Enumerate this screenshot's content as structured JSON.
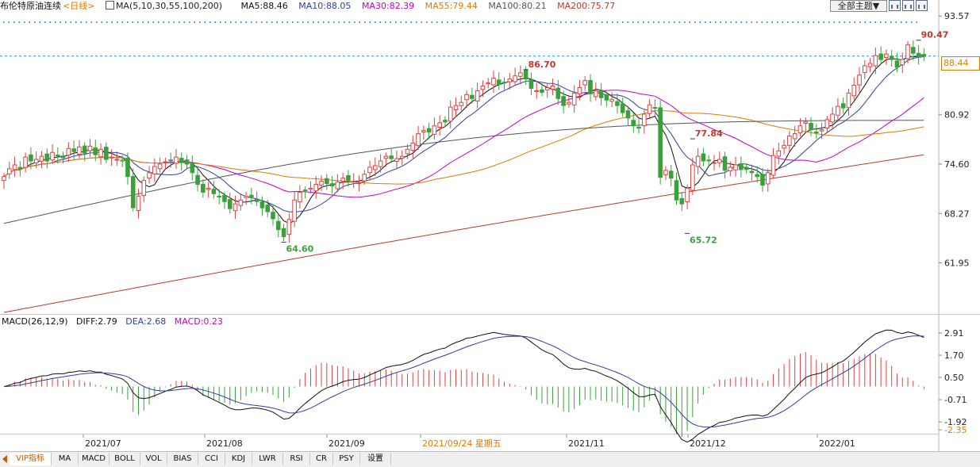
{
  "header": {
    "title": "布伦特原油连续",
    "period": "<日线>",
    "ma_label": "MA(5,10,30,55,100,200)",
    "ma_items": [
      {
        "label": "MA5:88.46",
        "color": "#111111"
      },
      {
        "label": "MA10:88.05",
        "color": "#2f3e9e"
      },
      {
        "label": "MA30:82.39",
        "color": "#c800c8"
      },
      {
        "label": "MA55:79.44",
        "color": "#e07a00"
      },
      {
        "label": "MA100:80.21",
        "color": "#555555"
      },
      {
        "label": "MA200:75.77",
        "color": "#c0392b"
      }
    ],
    "theme_button": "全部主题▼",
    "current_price": "88.44"
  },
  "price_axis": {
    "ticks": [
      "93.57",
      "80.92",
      "74.60",
      "68.27",
      "61.95"
    ]
  },
  "macd": {
    "label": "MACD(26,12,9)",
    "diff_label": "DIFF:2.79",
    "dea_label": "DEA:2.68",
    "macd_label": "MACD:0.23",
    "ticks": [
      "2.91",
      "1.70",
      "0.50",
      "-0.71",
      "-1.92",
      "-2.35"
    ]
  },
  "time_axis": {
    "labels": [
      "2021/07",
      "2021/08",
      "2021/09",
      "2021/09/24 星期五",
      "2021/11",
      "2021/12",
      "2022/01"
    ]
  },
  "annotations": [
    "77.84",
    "64.60",
    "86.70",
    "65.72",
    "90.47"
  ],
  "tabs": [
    "VIP指标",
    "MA",
    "MACD",
    "BOLL",
    "VOL",
    "BIAS",
    "CCI",
    "KDJ",
    "LWR",
    "RSI",
    "CR",
    "PSY",
    "设置"
  ],
  "colors": {
    "up": "#e04040",
    "down": "#3aa03a",
    "accent": "#e07a00",
    "annotation_high": "#c0392b",
    "annotation_low": "#3aa03a"
  },
  "chart_data": [
    {
      "type": "candlestick",
      "title": "布伦特原油连续",
      "period": "日线",
      "yticks": [
        93.57,
        80.92,
        74.6,
        68.27,
        61.95
      ],
      "ylim": [
        55.4,
        94.2
      ],
      "annotations": [
        {
          "label": "77.84",
          "value": 77.84,
          "kind": "high"
        },
        {
          "label": "64.60",
          "value": 64.6,
          "kind": "low"
        },
        {
          "label": "86.70",
          "value": 86.7,
          "kind": "high"
        },
        {
          "label": "65.72",
          "value": 65.72,
          "kind": "low"
        },
        {
          "label": "90.47",
          "value": 90.47,
          "kind": "high"
        }
      ],
      "x_labels": [
        "2021/07",
        "2021/08",
        "2021/09",
        "2021/09/24 星期五",
        "2021/11",
        "2021/12",
        "2022/01"
      ],
      "close": [
        73.0,
        74.0,
        74.5,
        74.0,
        75.5,
        75.0,
        75.2,
        75.6,
        75.0,
        76.1,
        75.7,
        75.4,
        76.6,
        76.2,
        76.8,
        76.0,
        76.9,
        75.8,
        76.5,
        75.2,
        75.5,
        75.2,
        75.0,
        73.0,
        69.0,
        70.5,
        72.5,
        73.5,
        74.3,
        74.6,
        74.9,
        75.0,
        75.5,
        74.8,
        74.6,
        73.5,
        72.0,
        71.0,
        71.5,
        70.8,
        70.4,
        69.8,
        68.9,
        69.5,
        70.0,
        70.5,
        70.4,
        69.8,
        69.0,
        68.5,
        67.6,
        66.2,
        65.3,
        67.5,
        70.0,
        71.0,
        71.2,
        71.5,
        72.0,
        72.4,
        72.1,
        71.8,
        72.3,
        72.8,
        72.5,
        72.4,
        72.2,
        73.3,
        74.2,
        74.4,
        75.0,
        75.6,
        75.3,
        75.3,
        75.6,
        76.5,
        77.3,
        78.5,
        78.9,
        78.7,
        79.5,
        79.9,
        80.0,
        81.9,
        82.1,
        82.5,
        83.5,
        83.0,
        84.0,
        84.6,
        85.0,
        85.6,
        84.8,
        85.0,
        85.5,
        85.9,
        86.3,
        85.5,
        84.3,
        84.0,
        83.8,
        84.4,
        84.6,
        83.0,
        82.1,
        82.5,
        83.7,
        84.4,
        85.3,
        83.6,
        84.0,
        83.1,
        82.8,
        82.9,
        82.1,
        81.2,
        80.5,
        79.5,
        79.2,
        81.0,
        82.2,
        81.8,
        72.9,
        73.8,
        72.8,
        70.0,
        69.5,
        71.5,
        74.5,
        75.6,
        75.0,
        75.1,
        74.8,
        75.2,
        73.8,
        74.2,
        74.5,
        73.9,
        73.9,
        73.5,
        73.0,
        71.9,
        73.5,
        75.7,
        76.3,
        77.0,
        78.2,
        78.5,
        79.5,
        80.0,
        79.0,
        78.6,
        79.0,
        80.3,
        81.0,
        82.0,
        81.8,
        83.7,
        84.7,
        86.0,
        87.2,
        87.5,
        88.5,
        88.0,
        88.7,
        88.0,
        87.0,
        88.0,
        89.9,
        88.8,
        88.3,
        88.4
      ],
      "series": [
        {
          "name": "MA5",
          "color": "#111111",
          "current": 88.46
        },
        {
          "name": "MA10",
          "color": "#2f3e9e",
          "current": 88.05
        },
        {
          "name": "MA30",
          "color": "#c800c8",
          "current": 82.39
        },
        {
          "name": "MA55",
          "color": "#e07a00",
          "current": 79.44
        },
        {
          "name": "MA100",
          "color": "#555555",
          "current": 80.21
        },
        {
          "name": "MA200",
          "color": "#c0392b",
          "current": 75.77
        }
      ]
    },
    {
      "type": "line",
      "title": "MACD(26,12,9)",
      "yticks": [
        2.91,
        1.7,
        0.5,
        -0.71,
        -1.92,
        -2.35
      ],
      "ylim": [
        -2.6,
        3.25
      ],
      "series": [
        {
          "name": "DIFF",
          "current": 2.79,
          "color": "#111111"
        },
        {
          "name": "DEA",
          "current": 2.68,
          "color": "#2f3e9e"
        },
        {
          "name": "MACD",
          "current": 0.23,
          "color": "#c800c8"
        }
      ]
    }
  ]
}
